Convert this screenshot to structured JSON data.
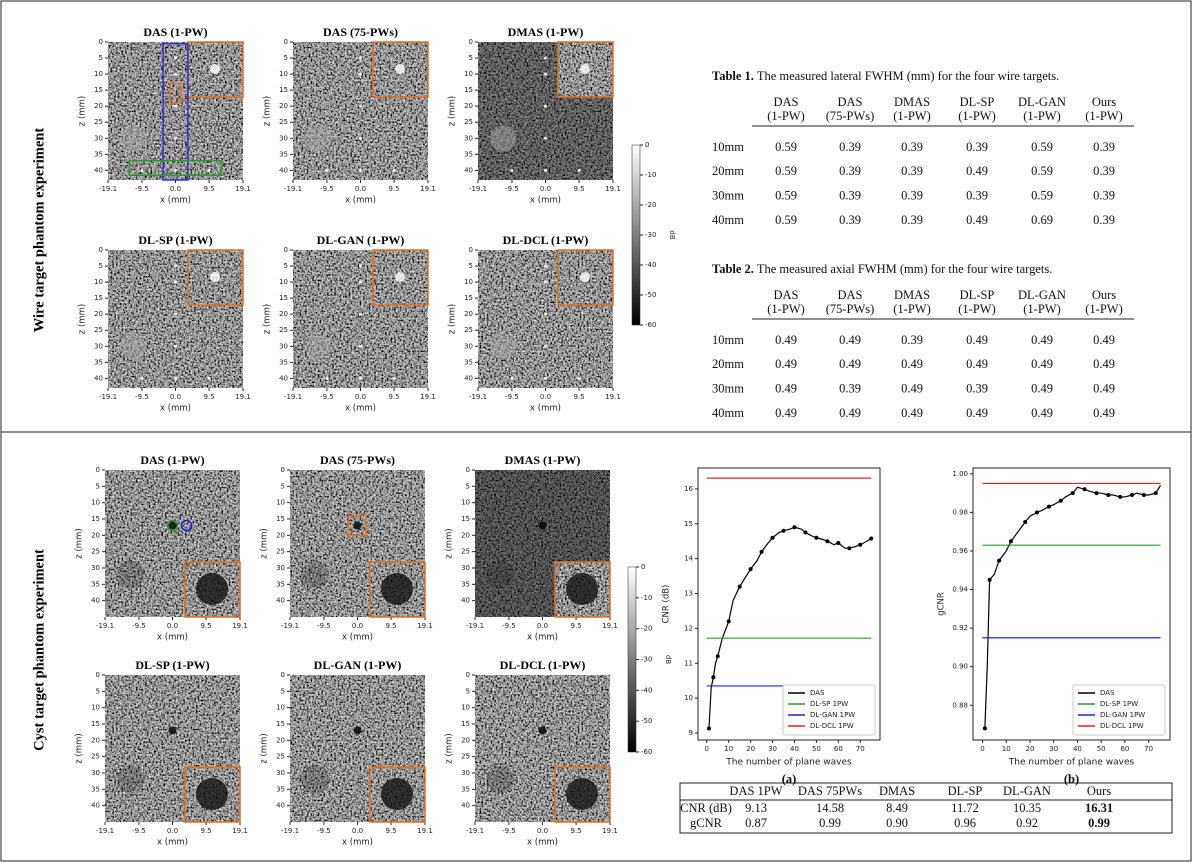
{
  "sections": [
    "Wire target phantom experiment",
    "Cyst target phantom experiment"
  ],
  "image_axes": {
    "xlabel": "x (mm)",
    "zlabel": "z (mm)",
    "xlim": [
      -19.1,
      19.1
    ],
    "xticks": [
      -19.1,
      -9.5,
      {
        "value": 0,
        "label": "0.0"
      },
      9.5,
      19.1
    ],
    "zticks": [
      0,
      5,
      10,
      15,
      20,
      25,
      30,
      35,
      40
    ],
    "colorbar": {
      "label": "dB",
      "lim": [
        -60,
        0
      ],
      "ticks": [
        0,
        -10,
        -20,
        -30,
        -40,
        -50,
        -60
      ]
    }
  },
  "wire": {
    "zlim": [
      0,
      43
    ],
    "titles": [
      "DAS (1-PW)",
      "DAS (75-PWs)",
      "DMAS (1-PW)",
      "DL-SP (1-PW)",
      "DL-GAN (1-PW)",
      "DL-DCL (1-PW)"
    ],
    "tables": [
      {
        "caption_label": "Table 1.",
        "caption": "The measured lateral FWHM (mm) for the four wire targets.",
        "columns": [
          [
            "DAS",
            "(1-PW)"
          ],
          [
            "DAS",
            "(75-PWs)"
          ],
          [
            "DMAS",
            "(1-PW)"
          ],
          [
            "DL-SP",
            "(1-PW)"
          ],
          [
            "DL-GAN",
            "(1-PW)"
          ],
          [
            "Ours",
            "(1-PW)"
          ]
        ],
        "rows": [
          [
            "10mm",
            "0.59",
            "0.39",
            "0.39",
            "0.39",
            "0.59",
            "0.39"
          ],
          [
            "20mm",
            "0.59",
            "0.39",
            "0.39",
            "0.49",
            "0.59",
            "0.39"
          ],
          [
            "30mm",
            "0.59",
            "0.39",
            "0.39",
            "0.39",
            "0.59",
            "0.39"
          ],
          [
            "40mm",
            "0.59",
            "0.39",
            "0.39",
            "0.49",
            "0.69",
            "0.39"
          ]
        ]
      },
      {
        "caption_label": "Table 2.",
        "caption": "The measured axial FWHM (mm) for the four wire targets.",
        "columns": [
          [
            "DAS",
            "(1-PW)"
          ],
          [
            "DAS",
            "(75-PWs)"
          ],
          [
            "DMAS",
            "(1-PW)"
          ],
          [
            "DL-SP",
            "(1-PW)"
          ],
          [
            "DL-GAN",
            "(1-PW)"
          ],
          [
            "Ours",
            "(1-PW)"
          ]
        ],
        "rows": [
          [
            "10mm",
            "0.49",
            "0.49",
            "0.39",
            "0.49",
            "0.49",
            "0.49"
          ],
          [
            "20mm",
            "0.49",
            "0.49",
            "0.49",
            "0.49",
            "0.49",
            "0.49"
          ],
          [
            "30mm",
            "0.49",
            "0.39",
            "0.49",
            "0.39",
            "0.49",
            "0.49"
          ],
          [
            "40mm",
            "0.49",
            "0.49",
            "0.49",
            "0.49",
            "0.49",
            "0.49"
          ]
        ]
      }
    ]
  },
  "cyst": {
    "zlim": [
      0,
      45
    ],
    "titles": [
      "DAS (1-PW)",
      "DAS (75-PWs)",
      "DMAS (1-PW)",
      "DL-SP (1-PW)",
      "DL-GAN (1-PW)",
      "DL-DCL (1-PW)"
    ],
    "table": {
      "columns": [
        "DAS 1PW",
        "DAS 75PWs",
        "DMAS",
        "DL-SP",
        "DL-GAN",
        "Ours"
      ],
      "rows": [
        {
          "label": "CNR (dB)",
          "values": [
            "9.13",
            "14.58",
            "8.49",
            "11.72",
            "10.35",
            "16.31"
          ]
        },
        {
          "label": "gCNR",
          "values": [
            "0.87",
            "0.99",
            "0.90",
            "0.96",
            "0.92",
            "0.99"
          ]
        }
      ]
    }
  },
  "chart_data": [
    {
      "type": "line",
      "caption": "(a)",
      "xlabel": "The number of plane waves",
      "ylabel": "CNR (dB)",
      "xlim": [
        -4,
        79
      ],
      "ylim": [
        8.8,
        16.6
      ],
      "xticks": [
        0,
        10,
        20,
        30,
        40,
        50,
        60,
        70
      ],
      "yticks": [
        9,
        10,
        11,
        12,
        13,
        14,
        15,
        16
      ],
      "legend": "lower right",
      "series": [
        {
          "name": "DAS",
          "color": "#000000",
          "marker": "o",
          "x": [
            1,
            2,
            3,
            4,
            5,
            7,
            10,
            12,
            15,
            18,
            20,
            23,
            25,
            28,
            30,
            33,
            35,
            38,
            40,
            43,
            45,
            48,
            50,
            53,
            55,
            58,
            60,
            63,
            65,
            68,
            70,
            73,
            75
          ],
          "values": [
            9.13,
            10.3,
            10.6,
            11.0,
            11.2,
            11.7,
            12.2,
            12.8,
            13.2,
            13.5,
            13.7,
            13.95,
            14.2,
            14.45,
            14.6,
            14.75,
            14.8,
            14.85,
            14.9,
            14.85,
            14.75,
            14.65,
            14.6,
            14.55,
            14.5,
            14.4,
            14.45,
            14.3,
            14.3,
            14.35,
            14.4,
            14.5,
            14.58
          ]
        },
        {
          "name": "DL-SP 1PW",
          "color": "#2a9a2a",
          "x": [
            0,
            75
          ],
          "values": [
            11.72,
            11.72
          ]
        },
        {
          "name": "DL-GAN 1PW",
          "color": "#2020e0",
          "x": [
            0,
            75
          ],
          "values": [
            10.35,
            10.35
          ]
        },
        {
          "name": "DL-DCL 1PW",
          "color": "#e02020",
          "x": [
            0,
            75
          ],
          "values": [
            16.31,
            16.31
          ]
        }
      ]
    },
    {
      "type": "line",
      "caption": "(b)",
      "xlabel": "The number of plane waves",
      "ylabel": "gCNR",
      "xlim": [
        -4,
        79
      ],
      "ylim": [
        0.862,
        1.003
      ],
      "xticks": [
        0,
        10,
        20,
        30,
        40,
        50,
        60,
        70
      ],
      "yticks": [
        0.88,
        {
          "value": 0.9,
          "label": "0.90"
        },
        0.92,
        0.94,
        0.96,
        0.98,
        {
          "value": 1,
          "label": "1.00"
        }
      ],
      "legend": "lower right",
      "series": [
        {
          "name": "DAS",
          "color": "#000000",
          "marker": "o",
          "x": [
            1,
            2,
            3,
            5,
            7,
            10,
            12,
            15,
            18,
            20,
            23,
            25,
            28,
            30,
            33,
            35,
            38,
            40,
            43,
            45,
            48,
            50,
            53,
            55,
            58,
            60,
            63,
            65,
            68,
            70,
            73,
            75
          ],
          "values": [
            0.868,
            0.9,
            0.945,
            0.948,
            0.955,
            0.96,
            0.965,
            0.97,
            0.975,
            0.978,
            0.98,
            0.981,
            0.983,
            0.984,
            0.986,
            0.988,
            0.99,
            0.993,
            0.992,
            0.991,
            0.99,
            0.99,
            0.989,
            0.989,
            0.988,
            0.988,
            0.989,
            0.99,
            0.989,
            0.989,
            0.99,
            0.994
          ]
        },
        {
          "name": "DL-SP 1PW",
          "color": "#2a9a2a",
          "x": [
            0,
            75
          ],
          "values": [
            0.963,
            0.963
          ]
        },
        {
          "name": "DL-GAN 1PW",
          "color": "#2020e0",
          "x": [
            0,
            75
          ],
          "values": [
            0.915,
            0.915
          ]
        },
        {
          "name": "DL-DCL 1PW",
          "color": "#e02020",
          "x": [
            0,
            75
          ],
          "values": [
            0.995,
            0.995
          ]
        }
      ]
    }
  ]
}
